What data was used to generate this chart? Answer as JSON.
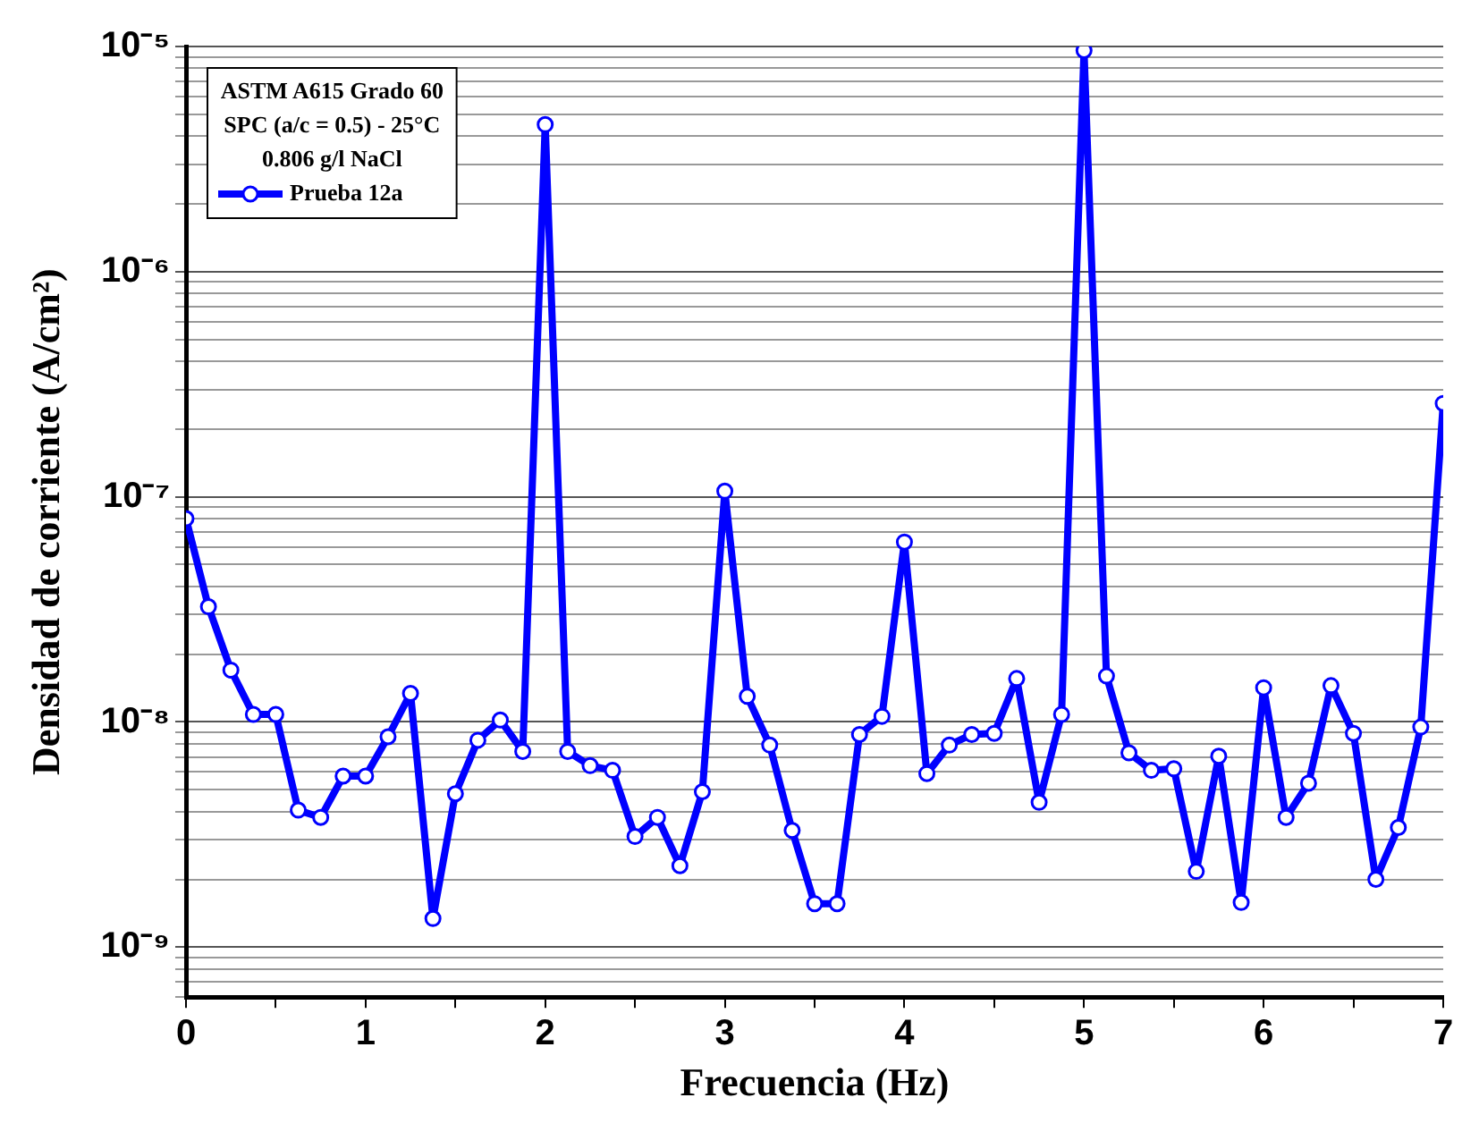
{
  "chart_data": {
    "type": "line",
    "xlabel": "Frecuencia (Hz)",
    "ylabel": "Densidad de corriente (A/cm²)",
    "legend_title": [
      "ASTM A615 Grado 60",
      "SPC (a/c = 0.5) - 25°C",
      "0.806 g/l NaCl"
    ],
    "x": [
      0,
      0.125,
      0.25,
      0.375,
      0.5,
      0.625,
      0.75,
      0.875,
      1,
      1.125,
      1.25,
      1.375,
      1.5,
      1.625,
      1.75,
      1.875,
      2,
      2.125,
      2.25,
      2.375,
      2.5,
      2.625,
      2.75,
      2.875,
      3,
      3.125,
      3.25,
      3.375,
      3.5,
      3.625,
      3.75,
      3.875,
      4,
      4.125,
      4.25,
      4.375,
      4.5,
      4.625,
      4.75,
      4.875,
      5,
      5.125,
      5.25,
      5.375,
      5.5,
      5.625,
      5.75,
      5.875,
      6,
      6.125,
      6.25,
      6.375,
      6.5,
      6.625,
      6.75,
      6.875,
      7
    ],
    "series": [
      {
        "name": "Prueba 12a",
        "color": "#0000ff",
        "values": [
          8e-08,
          3.25e-08,
          1.7e-08,
          1.08e-08,
          1.08e-08,
          4.06e-09,
          3.77e-09,
          5.75e-09,
          5.75e-09,
          8.6e-09,
          1.34e-08,
          1.34e-09,
          4.8e-09,
          8.3e-09,
          1.02e-08,
          7.4e-09,
          4.5e-06,
          7.4e-09,
          6.4e-09,
          6.1e-09,
          3.1e-09,
          3.77e-09,
          2.3e-09,
          4.9e-09,
          1.06e-07,
          1.3e-08,
          7.9e-09,
          3.3e-09,
          1.56e-09,
          1.56e-09,
          8.8e-09,
          1.06e-08,
          6.3e-08,
          5.9e-09,
          7.9e-09,
          8.8e-09,
          8.9e-09,
          1.56e-08,
          4.4e-09,
          1.08e-08,
          9.6e-06,
          1.6e-08,
          7.3e-09,
          6.1e-09,
          6.2e-09,
          2.17e-09,
          7.05e-09,
          1.58e-09,
          1.42e-08,
          3.77e-09,
          5.35e-09,
          1.45e-08,
          8.9e-09,
          2e-09,
          3.4e-09,
          9.5e-09,
          2.6e-07
        ]
      }
    ],
    "xlim": [
      0,
      7
    ],
    "xticks": [
      0,
      {
        "value": 0.5,
        "label": null
      },
      1,
      {
        "value": 1.5,
        "label": null
      },
      2,
      {
        "value": 2.5,
        "label": null
      },
      3,
      {
        "value": 3.5,
        "label": null
      },
      4,
      {
        "value": 4.5,
        "label": null
      },
      5,
      {
        "value": 5.5,
        "label": null
      },
      6,
      {
        "value": 6.5,
        "label": null
      },
      7
    ],
    "ylim": [
      6e-10,
      1e-05
    ],
    "log": "y",
    "yticks": [
      {
        "value": 6e-10,
        "label": null
      },
      {
        "value": 7e-10,
        "label": null
      },
      {
        "value": 8e-10,
        "label": null
      },
      {
        "value": 9e-10,
        "label": null
      },
      {
        "value": 1e-09,
        "label": "10⁻⁹"
      },
      {
        "value": 2e-09,
        "label": null
      },
      {
        "value": 3e-09,
        "label": null
      },
      {
        "value": 4e-09,
        "label": null
      },
      {
        "value": 5e-09,
        "label": null
      },
      {
        "value": 6e-09,
        "label": null
      },
      {
        "value": 7e-09,
        "label": null
      },
      {
        "value": 8e-09,
        "label": null
      },
      {
        "value": 9e-09,
        "label": null
      },
      {
        "value": 1e-08,
        "label": "10⁻⁸"
      },
      {
        "value": 2e-08,
        "label": null
      },
      {
        "value": 3e-08,
        "label": null
      },
      {
        "value": 4e-08,
        "label": null
      },
      {
        "value": 5e-08,
        "label": null
      },
      {
        "value": 6e-08,
        "label": null
      },
      {
        "value": 7e-08,
        "label": null
      },
      {
        "value": 8e-08,
        "label": null
      },
      {
        "value": 9e-08,
        "label": null
      },
      {
        "value": 1e-07,
        "label": "10⁻⁷"
      },
      {
        "value": 2e-07,
        "label": null
      },
      {
        "value": 3e-07,
        "label": null
      },
      {
        "value": 4e-07,
        "label": null
      },
      {
        "value": 5e-07,
        "label": null
      },
      {
        "value": 6e-07,
        "label": null
      },
      {
        "value": 7e-07,
        "label": null
      },
      {
        "value": 8e-07,
        "label": null
      },
      {
        "value": 9e-07,
        "label": null
      },
      {
        "value": 1e-06,
        "label": "10⁻⁶"
      },
      {
        "value": 2e-06,
        "label": null
      },
      {
        "value": 3e-06,
        "label": null
      },
      {
        "value": 4e-06,
        "label": null
      },
      {
        "value": 5e-06,
        "label": null
      },
      {
        "value": 6e-06,
        "label": null
      },
      {
        "value": 7e-06,
        "label": null
      },
      {
        "value": 8e-06,
        "label": null
      },
      {
        "value": 9e-06,
        "label": null
      },
      {
        "value": 1e-05,
        "label": "10⁻⁵"
      }
    ],
    "grid": "y",
    "legend": "top left",
    "marker": "circle",
    "line_style": "solid"
  }
}
